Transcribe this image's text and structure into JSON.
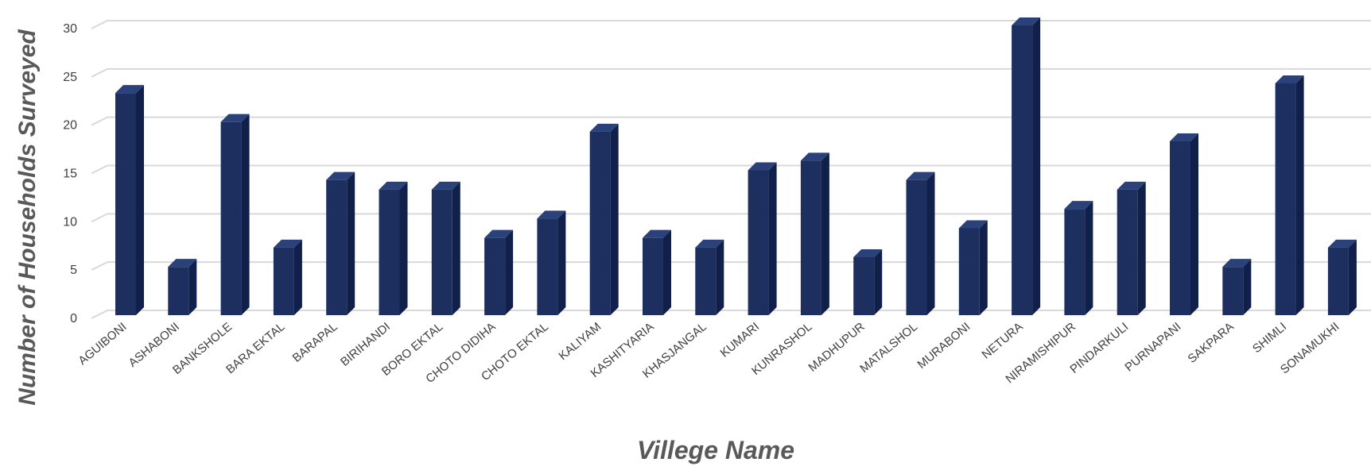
{
  "chart_data": {
    "type": "bar",
    "title": "",
    "xlabel": "Villege Name",
    "ylabel": "Number of Households Surveyed",
    "ylim": [
      0,
      30
    ],
    "yticks": [
      0,
      5,
      10,
      15,
      20,
      25,
      30
    ],
    "grid": true,
    "legend": "none",
    "bar_color": "#1c2f5e",
    "categories": [
      "AGUIBONI",
      "ASHABONI",
      "BANKSHOLE",
      "BARA EKTAL",
      "BARAPAL",
      "BIRIHANDI",
      "BORO EKTAL",
      "CHOTO DIDIHA",
      "CHOTO EKTAL",
      "KALIYAM",
      "KASHITYARIA",
      "KHASJANGAL",
      "KUMARI",
      "KUNRASHOL",
      "MADHUPUR",
      "MATALSHOL",
      "MURABONI",
      "NETURA",
      "NIRAMISHIPUR",
      "PINDARKULI",
      "PURNAPANI",
      "SAKPARA",
      "SHIMLI",
      "SONAMUKHI"
    ],
    "values": [
      23,
      5,
      20,
      7,
      14,
      13,
      13,
      8,
      10,
      19,
      8,
      7,
      15,
      16,
      6,
      14,
      9,
      30,
      11,
      13,
      18,
      5,
      24,
      7
    ]
  }
}
